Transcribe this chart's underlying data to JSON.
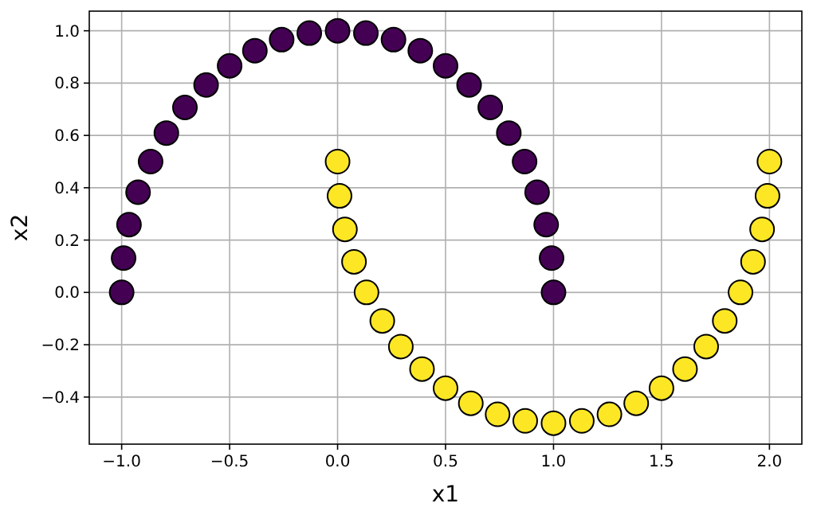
{
  "chart_data": {
    "type": "scatter",
    "xlabel": "x1",
    "ylabel": "x2",
    "xlim": [
      -1.15,
      2.15
    ],
    "ylim": [
      -0.58,
      1.075
    ],
    "xticks": [
      {
        "value": -1,
        "label": "−1.0"
      },
      {
        "value": -0.5,
        "label": "−0.5"
      },
      {
        "value": 0,
        "label": "0.0"
      },
      {
        "value": 0.5,
        "label": "0.5"
      },
      {
        "value": 1,
        "label": "1.0"
      },
      {
        "value": 1.5,
        "label": "1.5"
      },
      {
        "value": 2,
        "label": "2.0"
      }
    ],
    "yticks": [
      {
        "value": -0.4,
        "label": "−0.4"
      },
      {
        "value": -0.2,
        "label": "−0.2"
      },
      {
        "value": 0,
        "label": "0.0"
      },
      {
        "value": 0.2,
        "label": "0.2"
      },
      {
        "value": 0.4,
        "label": "0.4"
      },
      {
        "value": 0.6,
        "label": "0.6"
      },
      {
        "value": 0.8,
        "label": "0.8"
      },
      {
        "value": 1,
        "label": "1.0"
      }
    ],
    "grid": true,
    "marker": "circle",
    "series": [
      {
        "color": "#440154",
        "x": [
          1,
          0.991,
          0.966,
          0.924,
          0.866,
          0.793,
          0.707,
          0.609,
          0.5,
          0.383,
          0.259,
          0.131,
          0,
          -0.131,
          -0.259,
          -0.383,
          -0.5,
          -0.609,
          -0.707,
          -0.793,
          -0.866,
          -0.924,
          -0.966,
          -0.991,
          -1
        ],
        "values": [
          0,
          0.131,
          0.259,
          0.383,
          0.5,
          0.609,
          0.707,
          0.793,
          0.866,
          0.924,
          0.966,
          0.991,
          1,
          0.991,
          0.966,
          0.924,
          0.866,
          0.793,
          0.707,
          0.609,
          0.5,
          0.383,
          0.259,
          0.131,
          0
        ]
      },
      {
        "color": "#fde725",
        "x": [
          0,
          0.009,
          0.034,
          0.076,
          0.134,
          0.207,
          0.293,
          0.391,
          0.5,
          0.617,
          0.741,
          0.869,
          1,
          1.131,
          1.259,
          1.383,
          1.5,
          1.609,
          1.707,
          1.793,
          1.866,
          1.924,
          1.966,
          1.991,
          2
        ],
        "values": [
          0.5,
          0.369,
          0.241,
          0.117,
          0,
          -0.109,
          -0.207,
          -0.293,
          -0.366,
          -0.424,
          -0.466,
          -0.491,
          -0.5,
          -0.491,
          -0.466,
          -0.424,
          -0.366,
          -0.293,
          -0.207,
          -0.109,
          0,
          0.117,
          0.241,
          0.369,
          0.5
        ]
      }
    ]
  }
}
